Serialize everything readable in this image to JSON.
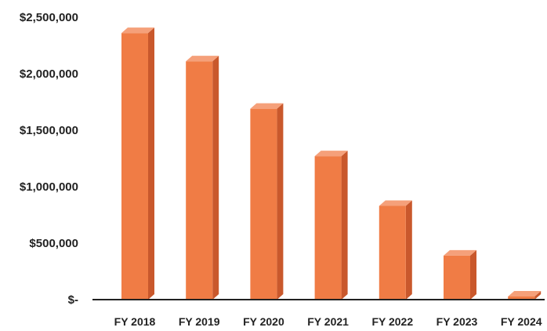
{
  "chart_data": {
    "type": "bar",
    "categories": [
      "FY 2018",
      "FY 2019",
      "FY 2020",
      "FY 2021",
      "FY 2022",
      "FY 2023",
      "FY 2024"
    ],
    "values": [
      2360000,
      2110000,
      1690000,
      1270000,
      830000,
      390000,
      0
    ],
    "y_ticks": [
      {
        "value": 0,
        "label": "$-"
      },
      {
        "value": 500000,
        "label": "$500,000"
      },
      {
        "value": 1000000,
        "label": "$1,000,000"
      },
      {
        "value": 1500000,
        "label": "$1,500,000"
      },
      {
        "value": 2000000,
        "label": "$2,000,000"
      },
      {
        "value": 2500000,
        "label": "$2,500,000"
      }
    ],
    "ylim": [
      0,
      2500000
    ],
    "grid": false,
    "legend": "none",
    "colors": {
      "bar_front": "#f07c45",
      "bar_side": "#c9582c",
      "bar_top": "#f5a07a",
      "axis": "#222222"
    }
  }
}
